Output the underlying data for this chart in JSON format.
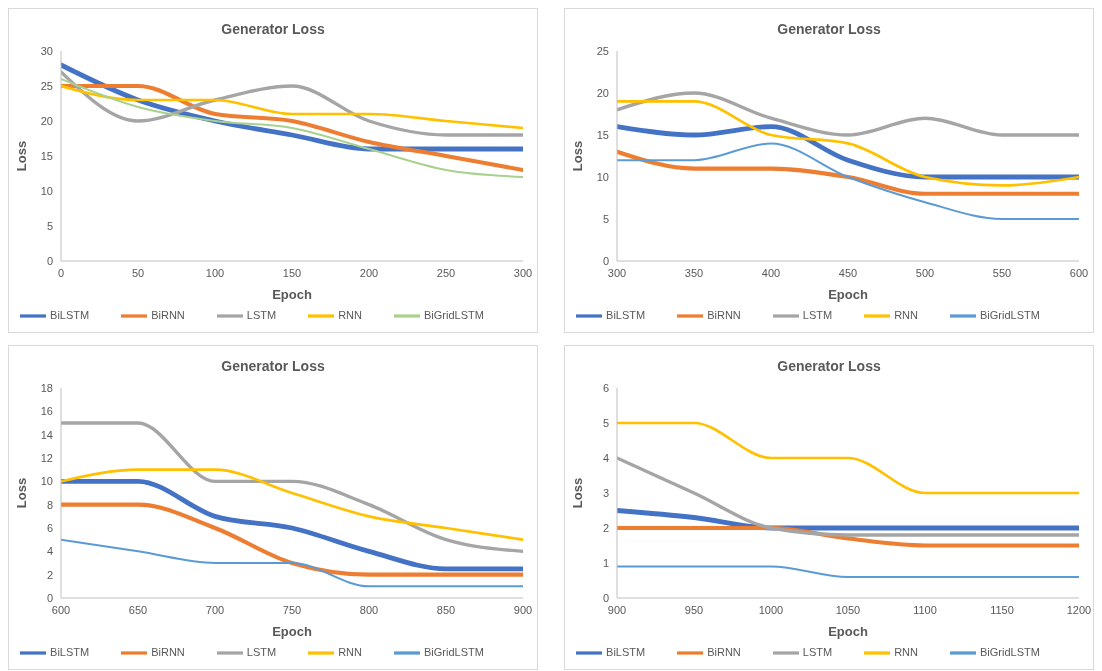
{
  "chart_data": [
    {
      "type": "line",
      "title": "Generator Loss",
      "xlabel": "Epoch",
      "ylabel": "Loss",
      "x": [
        0,
        50,
        100,
        150,
        200,
        250,
        300
      ],
      "xlim": [
        0,
        300
      ],
      "xticks": [
        0,
        50,
        100,
        150,
        200,
        250,
        300
      ],
      "ylim": [
        0,
        30
      ],
      "yticks": [
        0,
        5,
        10,
        15,
        20,
        25,
        30
      ],
      "legend": "bottom",
      "series": [
        {
          "name": "BiLSTM",
          "color": "#4472c4",
          "values": [
            28,
            23,
            20,
            18,
            16,
            16,
            16
          ]
        },
        {
          "name": "BiRNN",
          "color": "#ed7d31",
          "values": [
            25,
            25,
            21,
            20,
            17,
            15,
            13
          ]
        },
        {
          "name": "LSTM",
          "color": "#a5a5a5",
          "values": [
            27,
            20,
            23,
            25,
            20,
            18,
            18
          ]
        },
        {
          "name": "RNN",
          "color": "#ffc000",
          "values": [
            25,
            23,
            23,
            21,
            21,
            20,
            19
          ]
        },
        {
          "name": "BiGridLSTM",
          "color": "#a9d18e",
          "values": [
            26,
            22,
            20,
            19,
            16,
            13,
            12
          ]
        }
      ]
    },
    {
      "type": "line",
      "title": "Generator Loss",
      "xlabel": "Epoch",
      "ylabel": "Loss",
      "x": [
        300,
        350,
        400,
        450,
        500,
        550,
        600
      ],
      "xlim": [
        300,
        600
      ],
      "xticks": [
        300,
        350,
        400,
        450,
        500,
        550,
        600
      ],
      "ylim": [
        0,
        25
      ],
      "yticks": [
        0,
        5,
        10,
        15,
        20,
        25
      ],
      "legend": "bottom",
      "series": [
        {
          "name": "BiLSTM",
          "color": "#4472c4",
          "values": [
            16,
            15,
            16,
            12,
            10,
            10,
            10
          ]
        },
        {
          "name": "BiRNN",
          "color": "#ed7d31",
          "values": [
            13,
            11,
            11,
            10,
            8,
            8,
            8
          ]
        },
        {
          "name": "LSTM",
          "color": "#a5a5a5",
          "values": [
            18,
            20,
            17,
            15,
            17,
            15,
            15
          ]
        },
        {
          "name": "RNN",
          "color": "#ffc000",
          "values": [
            19,
            19,
            15,
            14,
            10,
            9,
            10
          ]
        },
        {
          "name": "BiGridLSTM",
          "color": "#5b9bd5",
          "values": [
            12,
            12,
            14,
            10,
            7,
            5,
            5
          ]
        }
      ]
    },
    {
      "type": "line",
      "title": "Generator Loss",
      "xlabel": "Epoch",
      "ylabel": "Loss",
      "x": [
        600,
        650,
        700,
        750,
        800,
        850,
        900
      ],
      "xlim": [
        600,
        900
      ],
      "xticks": [
        600,
        650,
        700,
        750,
        800,
        850,
        900
      ],
      "ylim": [
        0,
        18
      ],
      "yticks": [
        0,
        2,
        4,
        6,
        8,
        10,
        12,
        14,
        16,
        18
      ],
      "legend": "bottom",
      "series": [
        {
          "name": "BiLSTM",
          "color": "#4472c4",
          "values": [
            10,
            10,
            7,
            6,
            4,
            2.5,
            2.5
          ]
        },
        {
          "name": "BiRNN",
          "color": "#ed7d31",
          "values": [
            8,
            8,
            6,
            3,
            2,
            2,
            2
          ]
        },
        {
          "name": "LSTM",
          "color": "#a5a5a5",
          "values": [
            15,
            15,
            10,
            10,
            8,
            5,
            4
          ]
        },
        {
          "name": "RNN",
          "color": "#ffc000",
          "values": [
            10,
            11,
            11,
            9,
            7,
            6,
            5
          ]
        },
        {
          "name": "BiGridLSTM",
          "color": "#5b9bd5",
          "values": [
            5,
            4,
            3,
            3,
            1,
            1,
            1
          ]
        }
      ]
    },
    {
      "type": "line",
      "title": "Generator Loss",
      "xlabel": "Epoch",
      "ylabel": "Loss",
      "x": [
        900,
        950,
        1000,
        1050,
        1100,
        1150,
        1200
      ],
      "xlim": [
        900,
        1200
      ],
      "xticks": [
        900,
        950,
        1000,
        1050,
        1100,
        1150,
        1200
      ],
      "ylim": [
        0,
        6
      ],
      "yticks": [
        0,
        1,
        2,
        3,
        4,
        5,
        6
      ],
      "legend": "bottom",
      "series": [
        {
          "name": "BiLSTM",
          "color": "#4472c4",
          "values": [
            2.5,
            2.3,
            2,
            2,
            2,
            2,
            2
          ]
        },
        {
          "name": "BiRNN",
          "color": "#ed7d31",
          "values": [
            2,
            2,
            2,
            1.7,
            1.5,
            1.5,
            1.5
          ]
        },
        {
          "name": "LSTM",
          "color": "#a5a5a5",
          "values": [
            4,
            3,
            2,
            1.8,
            1.8,
            1.8,
            1.8
          ]
        },
        {
          "name": "RNN",
          "color": "#ffc000",
          "values": [
            5,
            5,
            4,
            4,
            3,
            3,
            3
          ]
        },
        {
          "name": "BiGridLSTM",
          "color": "#5b9bd5",
          "values": [
            0.9,
            0.9,
            0.9,
            0.6,
            0.6,
            0.6,
            0.6
          ]
        }
      ]
    }
  ]
}
